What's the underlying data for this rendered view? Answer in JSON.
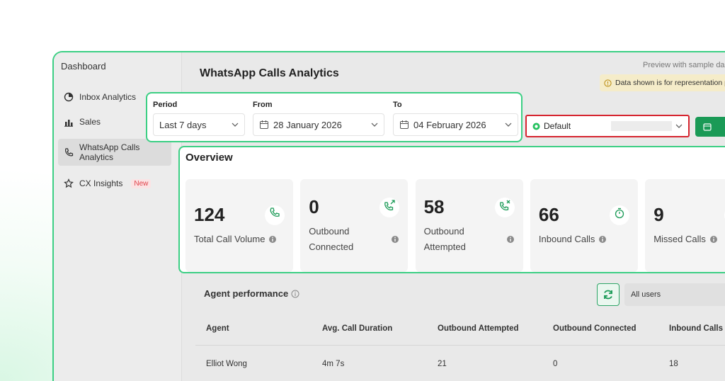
{
  "sidebar": {
    "title": "Dashboard",
    "items": [
      {
        "label": "Inbox Analytics"
      },
      {
        "label": "Sales"
      },
      {
        "label": "WhatsApp Calls Analytics"
      },
      {
        "label": "CX Insights",
        "badge": "New"
      }
    ]
  },
  "header": {
    "title": "WhatsApp Calls Analytics",
    "preview": "Preview with sample da",
    "notice": "Data shown is for representation p"
  },
  "filters": {
    "period": {
      "label": "Period",
      "value": "Last 7 days"
    },
    "from": {
      "label": "From",
      "value": "28 January 2026"
    },
    "to": {
      "label": "To",
      "value": "04 February 2026"
    },
    "account": "Default"
  },
  "overview": {
    "title": "Overview",
    "cards": [
      {
        "value": 124,
        "label": "Total Call Volume"
      },
      {
        "value": 0,
        "label": "Outbound Connected"
      },
      {
        "value": 58,
        "label": "Outbound Attempted"
      },
      {
        "value": 66,
        "label": "Inbound Calls"
      },
      {
        "value": 9,
        "label": "Missed Calls"
      }
    ]
  },
  "agent_performance": {
    "title": "Agent performance",
    "filter": "All users",
    "columns": [
      "Agent",
      "Avg. Call Duration",
      "Outbound Attempted",
      "Outbound Connected",
      "Inbound Calls"
    ],
    "rows": [
      [
        "Elliot Wong",
        "4m 7s",
        21,
        0,
        18
      ]
    ]
  }
}
